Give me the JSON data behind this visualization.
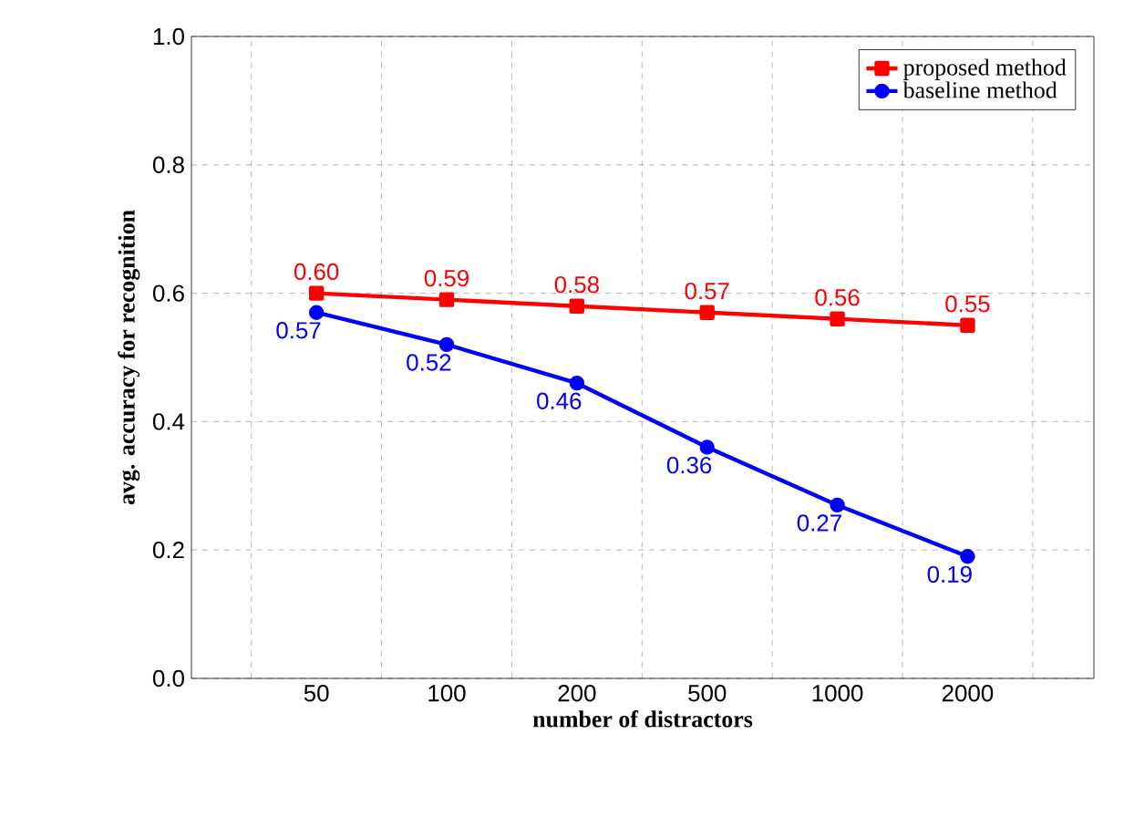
{
  "chart_data": {
    "type": "line",
    "xlabel": "number of distractors",
    "ylabel": "avg. accuracy for recognition",
    "categories": [
      "50",
      "100",
      "200",
      "500",
      "1000",
      "2000"
    ],
    "series": [
      {
        "name": "proposed method",
        "color": "#ff0000",
        "marker": "square",
        "values": [
          0.6,
          0.59,
          0.58,
          0.57,
          0.56,
          0.55
        ],
        "value_labels": [
          "0.60",
          "0.59",
          "0.58",
          "0.57",
          "0.56",
          "0.55"
        ]
      },
      {
        "name": "baseline method",
        "color": "#0000ff",
        "marker": "circle",
        "values": [
          0.57,
          0.52,
          0.46,
          0.36,
          0.27,
          0.19
        ],
        "value_labels": [
          "0.57",
          "0.52",
          "0.46",
          "0.36",
          "0.27",
          "0.19"
        ]
      }
    ],
    "ylim": [
      0,
      1
    ],
    "yticks": [
      {
        "value": 0,
        "label": "0.0"
      },
      {
        "value": 0.2,
        "label": "0.2"
      },
      {
        "value": 0.4,
        "label": "0.4"
      },
      {
        "value": 0.6,
        "label": "0.6"
      },
      {
        "value": 0.8,
        "label": "0.8"
      },
      {
        "value": 1,
        "label": "1.0"
      }
    ],
    "grid": true,
    "legend": "top right",
    "line_style": "solid"
  }
}
